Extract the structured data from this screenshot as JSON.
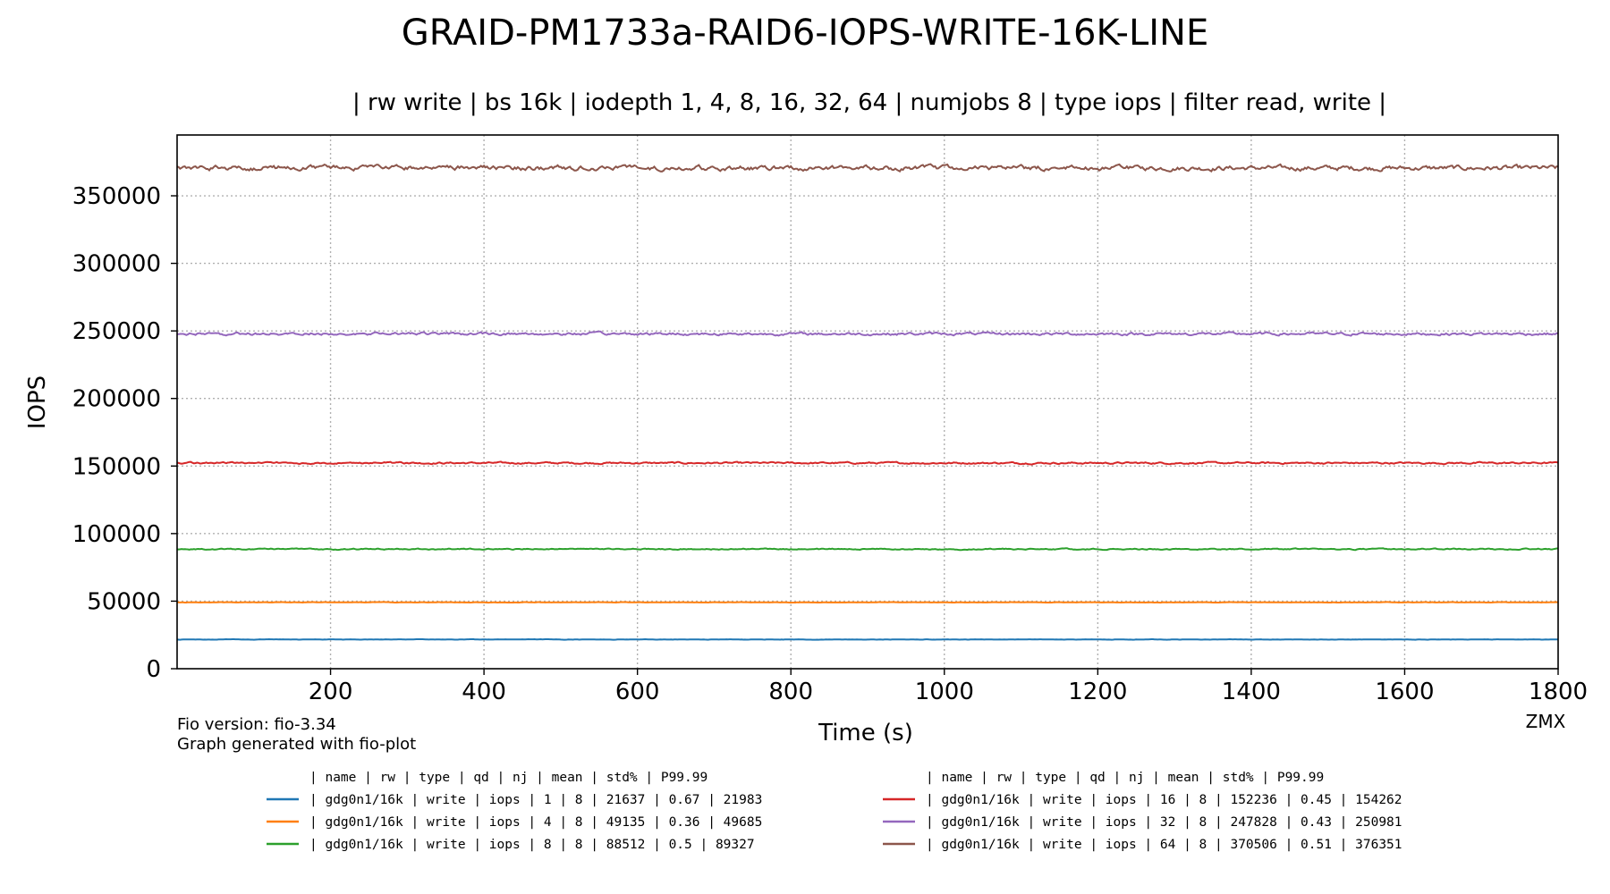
{
  "chart_data": {
    "type": "line",
    "title": "GRAID-PM1733a-RAID6-IOPS-WRITE-16K-LINE",
    "subtitle": "| rw write | bs 16k | iodepth 1, 4, 8, 16, 32, 64 | numjobs 8 | type iops | filter read, write |",
    "xlabel": "Time (s)",
    "ylabel": "IOPS",
    "xlim": [
      0,
      1800
    ],
    "ylim": [
      0,
      395000
    ],
    "xticks": [
      200,
      400,
      600,
      800,
      1000,
      1200,
      1400,
      1600,
      1800
    ],
    "yticks": [
      0,
      50000,
      100000,
      150000,
      200000,
      250000,
      300000,
      350000
    ],
    "grid": true,
    "series": [
      {
        "name": "gdg0n1/16k",
        "qd": 1,
        "color": "#1f77b4",
        "mean": 21637,
        "std_pct": 0.67,
        "p9999": 21983
      },
      {
        "name": "gdg0n1/16k",
        "qd": 4,
        "color": "#ff7f0e",
        "mean": 49135,
        "std_pct": 0.36,
        "p9999": 49685
      },
      {
        "name": "gdg0n1/16k",
        "qd": 8,
        "color": "#2ca02c",
        "mean": 88512,
        "std_pct": 0.5,
        "p9999": 89327
      },
      {
        "name": "gdg0n1/16k",
        "qd": 16,
        "color": "#d62728",
        "mean": 152236,
        "std_pct": 0.45,
        "p9999": 154262
      },
      {
        "name": "gdg0n1/16k",
        "qd": 32,
        "color": "#9467bd",
        "mean": 247828,
        "std_pct": 0.43,
        "p9999": 250981
      },
      {
        "name": "gdg0n1/16k",
        "qd": 64,
        "color": "#8c564b",
        "mean": 370506,
        "std_pct": 0.51,
        "p9999": 376351
      }
    ]
  },
  "footer": {
    "fio_version": "Fio version: fio-3.34",
    "generated_by": "Graph generated with fio-plot",
    "author": "ZMX"
  },
  "legend": {
    "header": "| name       | rw    | type | qd | nj | mean   | std% | P99.99",
    "rows": [
      "| gdg0n1/16k | write | iops |  1 |  8 |  21637 | 0.67 |  21983",
      "| gdg0n1/16k | write | iops |  4 |  8 |  49135 | 0.36 |  49685",
      "| gdg0n1/16k | write | iops |  8 |  8 |  88512 |  0.5 |  89327",
      "| gdg0n1/16k | write | iops | 16 |  8 | 152236 | 0.45 | 154262",
      "| gdg0n1/16k | write | iops | 32 |  8 | 247828 | 0.43 | 250981",
      "| gdg0n1/16k | write | iops | 64 |  8 | 370506 | 0.51 | 376351"
    ]
  }
}
